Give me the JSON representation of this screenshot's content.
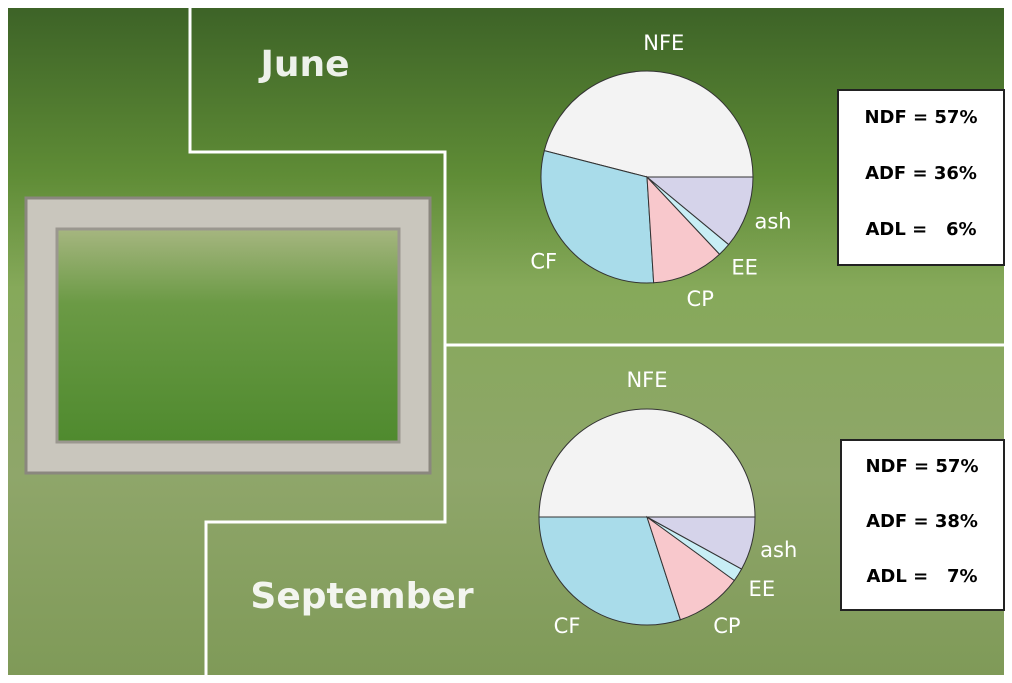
{
  "chart_data": [
    {
      "type": "pie",
      "title": "June",
      "categories": [
        "NFE",
        "CF",
        "CP",
        "EE",
        "ash"
      ],
      "values": [
        46,
        30,
        11,
        2,
        11
      ],
      "colors": [
        "#f3f3f3",
        "#a9dcea",
        "#f8c8cc",
        "#c8eef5",
        "#d5d3ea"
      ],
      "annotations": [
        "NDF = 57%",
        "ADF = 36%",
        "ADL =   6%"
      ]
    },
    {
      "type": "pie",
      "title": "September",
      "categories": [
        "NFE",
        "CF",
        "CP",
        "EE",
        "ash"
      ],
      "values": [
        50,
        30,
        10,
        2,
        8
      ],
      "colors": [
        "#f3f3f3",
        "#a9dcea",
        "#f8c8cc",
        "#c8eef5",
        "#d5d3ea"
      ],
      "annotations": [
        "NDF = 57%",
        "ADF = 38%",
        "ADL =   7%"
      ]
    }
  ]
}
